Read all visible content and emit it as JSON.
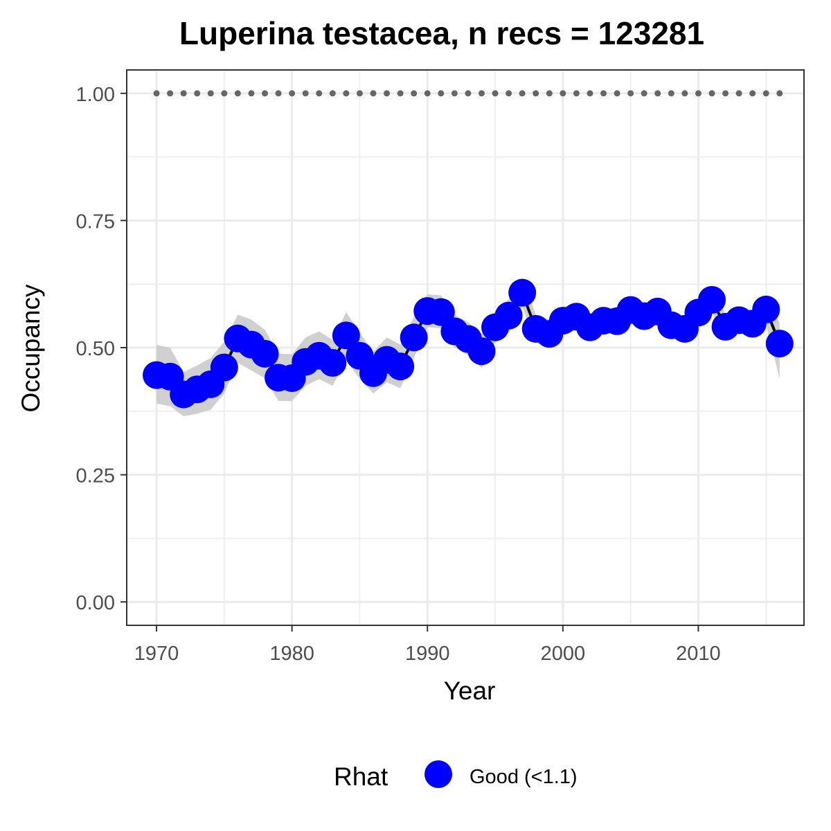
{
  "chart_data": {
    "type": "line",
    "title": "Luperina testacea, n recs = 123281",
    "xlabel": "Year",
    "ylabel": "Occupancy",
    "xlim": [
      1967.8,
      2017.8
    ],
    "ylim": [
      -0.046,
      1.046
    ],
    "x_ticks": [
      1970,
      1980,
      1990,
      2000,
      2010
    ],
    "x_tick_labels": [
      "1970",
      "1980",
      "1990",
      "2000",
      "2010"
    ],
    "y_ticks": [
      0,
      0.25,
      0.5,
      0.75,
      1.0
    ],
    "y_tick_labels": [
      "0.00",
      "0.25",
      "0.50",
      "0.75",
      "1.00"
    ],
    "grid": true,
    "legend": {
      "position": "bottom",
      "title": "Rhat",
      "entries": [
        {
          "label": "Good (<1.1)",
          "color": "#0000ff"
        }
      ]
    },
    "colors": {
      "points": "#0000ff",
      "line": "#000000",
      "ribbon": "#c8c8c8",
      "reference_dots": "#666666",
      "grid": "#ebebeb",
      "panel_border": "#333333"
    },
    "reference_line": {
      "y": 1.0,
      "style": "dotted"
    },
    "series": [
      {
        "x": [
          1970,
          1971,
          1972,
          1973,
          1974,
          1975,
          1976,
          1977,
          1978,
          1979,
          1980,
          1981,
          1982,
          1983,
          1984,
          1985,
          1986,
          1987,
          1988,
          1989,
          1990,
          1991,
          1992,
          1993,
          1994,
          1995,
          1996,
          1997,
          1998,
          1999,
          2000,
          2001,
          2002,
          2003,
          2004,
          2005,
          2006,
          2007,
          2008,
          2009,
          2010,
          2011,
          2012,
          2013,
          2014,
          2015,
          2016
        ],
        "y": [
          0.446,
          0.443,
          0.408,
          0.418,
          0.428,
          0.461,
          0.518,
          0.506,
          0.488,
          0.441,
          0.44,
          0.472,
          0.484,
          0.47,
          0.524,
          0.484,
          0.45,
          0.476,
          0.463,
          0.52,
          0.572,
          0.57,
          0.532,
          0.517,
          0.493,
          0.54,
          0.563,
          0.608,
          0.537,
          0.527,
          0.553,
          0.561,
          0.54,
          0.553,
          0.552,
          0.574,
          0.562,
          0.571,
          0.544,
          0.537,
          0.569,
          0.594,
          0.541,
          0.554,
          0.547,
          0.575,
          0.508
        ],
        "lower": [
          0.39,
          0.385,
          0.365,
          0.37,
          0.378,
          0.41,
          0.47,
          0.455,
          0.44,
          0.395,
          0.395,
          0.425,
          0.438,
          0.425,
          0.475,
          0.438,
          0.41,
          0.432,
          0.42,
          0.48,
          0.54,
          0.538,
          0.5,
          0.485,
          0.46,
          0.51,
          0.53,
          0.58,
          0.51,
          0.5,
          0.525,
          0.535,
          0.515,
          0.528,
          0.528,
          0.55,
          0.538,
          0.548,
          0.52,
          0.513,
          0.545,
          0.57,
          0.515,
          0.528,
          0.52,
          0.545,
          0.44
        ],
        "upper": [
          0.505,
          0.5,
          0.452,
          0.465,
          0.48,
          0.512,
          0.565,
          0.555,
          0.535,
          0.488,
          0.487,
          0.52,
          0.532,
          0.515,
          0.57,
          0.53,
          0.492,
          0.52,
          0.506,
          0.56,
          0.605,
          0.603,
          0.565,
          0.55,
          0.527,
          0.572,
          0.595,
          0.637,
          0.565,
          0.555,
          0.58,
          0.588,
          0.566,
          0.579,
          0.577,
          0.599,
          0.587,
          0.595,
          0.569,
          0.562,
          0.594,
          0.618,
          0.566,
          0.58,
          0.574,
          0.603,
          0.548
        ]
      }
    ],
    "reference_dot_years": [
      1970,
      1971,
      1972,
      1973,
      1974,
      1975,
      1976,
      1977,
      1978,
      1979,
      1980,
      1981,
      1982,
      1983,
      1984,
      1985,
      1986,
      1987,
      1988,
      1989,
      1990,
      1991,
      1992,
      1993,
      1994,
      1995,
      1996,
      1997,
      1998,
      1999,
      2000,
      2001,
      2002,
      2003,
      2004,
      2005,
      2006,
      2007,
      2008,
      2009,
      2010,
      2011,
      2012,
      2013,
      2014,
      2015,
      2016
    ]
  }
}
